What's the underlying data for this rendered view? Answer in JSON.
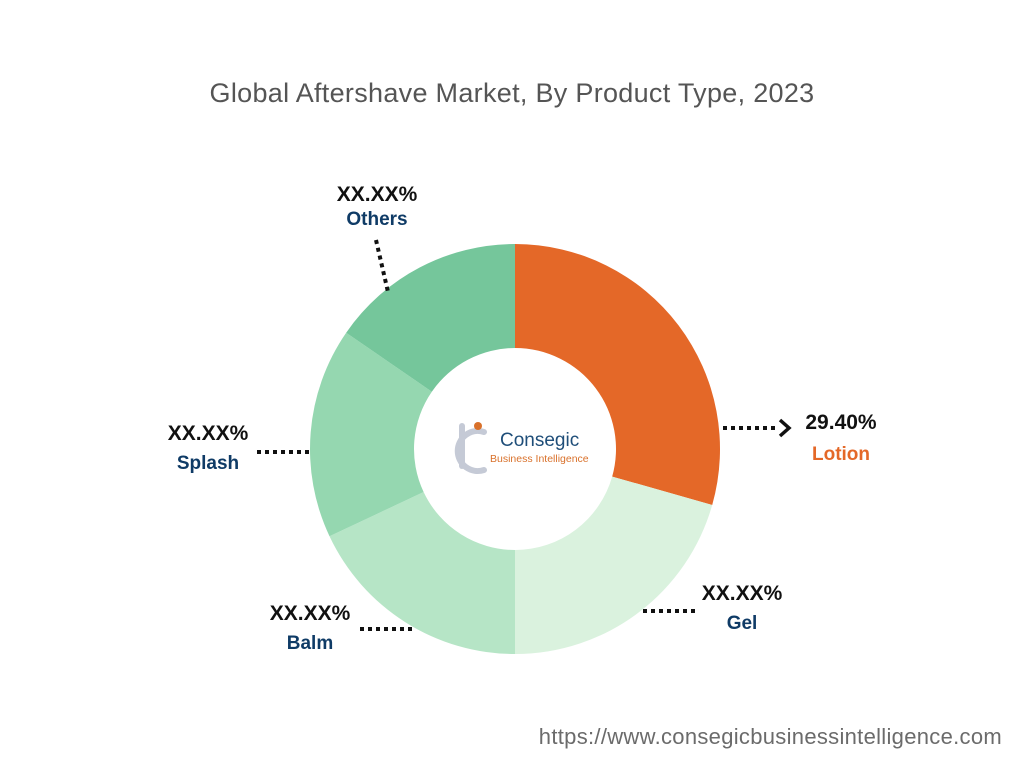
{
  "chart_data": {
    "type": "donut",
    "title": "Global Aftershave Market, By Product Type, 2023",
    "categories": [
      "Lotion",
      "Gel",
      "Balm",
      "Splash",
      "Others"
    ],
    "values": [
      29.4,
      20.6,
      18.0,
      16.6,
      15.4
    ],
    "labels": [
      "29.40%",
      "XX.XX%",
      "XX.XX%",
      "XX.XX%",
      "XX.XX%"
    ],
    "colors": [
      "#e46828",
      "#daf2de",
      "#b6e5c6",
      "#95d7b0",
      "#75c69b"
    ],
    "label_colors": [
      "#e46828",
      "#0f3b66",
      "#0f3b66",
      "#0f3b66",
      "#0f3b66"
    ]
  },
  "logo": {
    "name": "Consegic",
    "tagline": "Business Intelligence"
  },
  "source": "https://www.consegicbusinessintelligence.com"
}
